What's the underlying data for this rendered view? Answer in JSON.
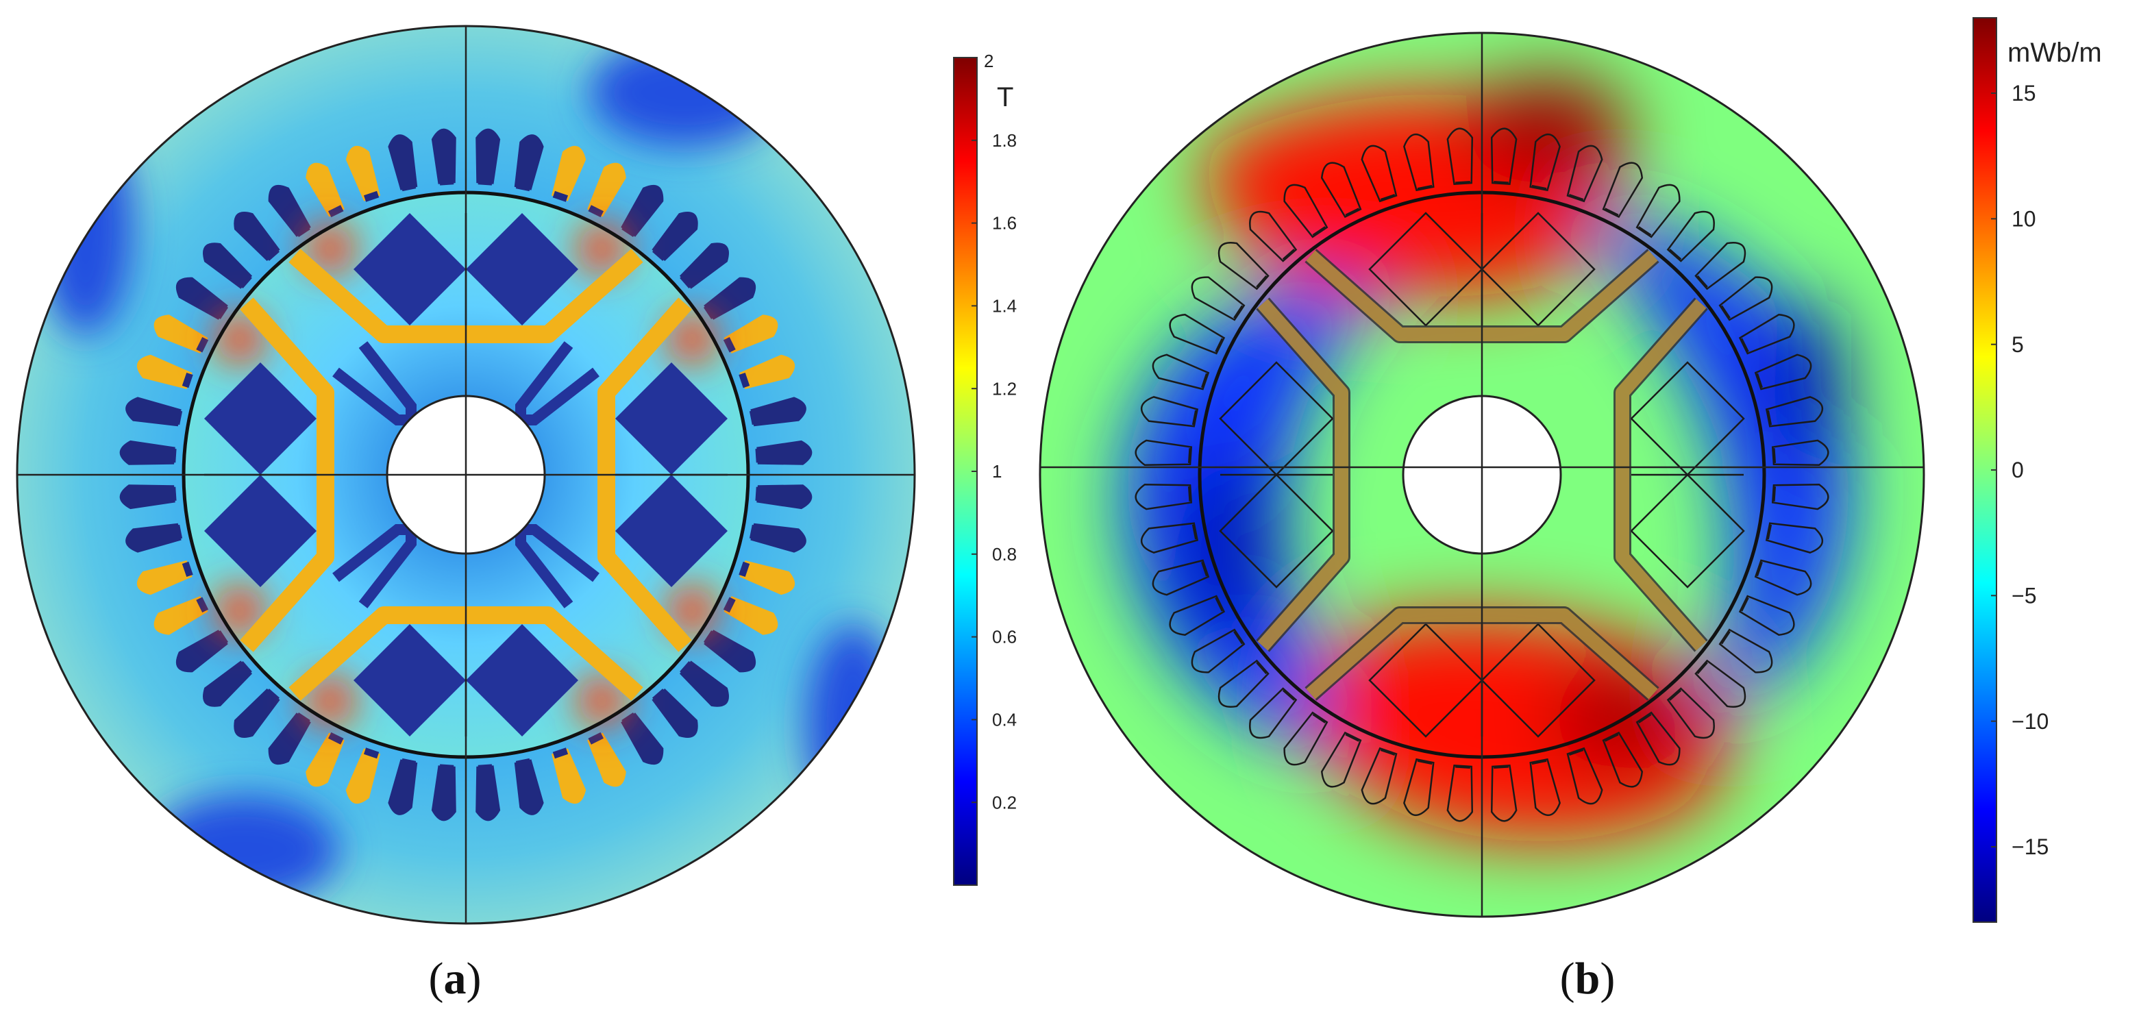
{
  "panels": [
    {
      "id": "a",
      "caption_label": "a",
      "colorbar": {
        "unit": "T",
        "min": 0,
        "max": 2,
        "ticks": [
          {
            "label": "2",
            "value": 2.0
          },
          {
            "label": "1.8",
            "value": 1.8
          },
          {
            "label": "1.6",
            "value": 1.6
          },
          {
            "label": "1.4",
            "value": 1.4
          },
          {
            "label": "1.2",
            "value": 1.2
          },
          {
            "label": "1",
            "value": 1.0
          },
          {
            "label": "0.8",
            "value": 0.8
          },
          {
            "label": "0.6",
            "value": 0.6
          },
          {
            "label": "0.4",
            "value": 0.4
          },
          {
            "label": "0.2",
            "value": 0.2
          }
        ]
      }
    },
    {
      "id": "b",
      "caption_label": "b",
      "colorbar": {
        "unit": "mWb/m",
        "min": -18,
        "max": 18,
        "ticks": [
          {
            "label": "15",
            "value": 15
          },
          {
            "label": "10",
            "value": 10
          },
          {
            "label": "5",
            "value": 5
          },
          {
            "label": "0",
            "value": 0
          },
          {
            "label": "−5",
            "value": -5
          },
          {
            "label": "−10",
            "value": -10
          },
          {
            "label": "−15",
            "value": -15
          }
        ]
      }
    }
  ],
  "colormap": {
    "name": "jet",
    "stops": [
      "#00007f",
      "#0000ff",
      "#007fff",
      "#00ffff",
      "#7fff7f",
      "#ffff00",
      "#ff7f00",
      "#ff0000",
      "#7f0000"
    ]
  },
  "colors": {
    "outline": "#222222",
    "slot_fill": "#202a80",
    "magnet_fill": "#23339a",
    "bridge_fill": "#f2b21a",
    "stator_field_a": "#4fb8e8",
    "hole": "#ffffff"
  }
}
